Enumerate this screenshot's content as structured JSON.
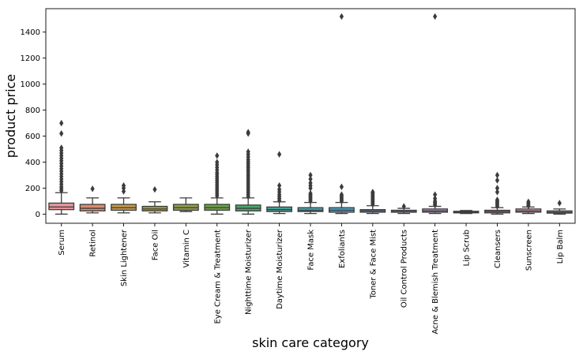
{
  "chart_data": {
    "type": "box",
    "xlabel": "skin care category",
    "ylabel": "product price",
    "ylim": [
      -70,
      1580
    ],
    "yticks": [
      0,
      200,
      400,
      600,
      800,
      1000,
      1200,
      1400
    ],
    "grid": false,
    "legend": "none",
    "categories": [
      "Serum",
      "Retinol",
      "Skin Lightener",
      "Face Oil",
      "Vitamin C",
      "Eye Cream & Treatment",
      "Nighttime Moisturizer",
      "Daytime Moisturizer",
      "Face Mask",
      "Exfoliants",
      "Toner & Face Mist",
      "Oil Control Products",
      "Acne & Blemish Treatment",
      "Lip Scrub",
      "Cleansers",
      "Sunscreen",
      "Lip Balm"
    ],
    "boxes": [
      {
        "category": "Serum",
        "color": "#e8969b",
        "whisker_low": 0,
        "q1": 35,
        "median": 55,
        "q3": 85,
        "whisker_high": 165,
        "outliers": [
          180,
          195,
          210,
          230,
          250,
          270,
          290,
          310,
          330,
          350,
          370,
          390,
          410,
          430,
          450,
          470,
          490,
          510,
          620,
          700
        ]
      },
      {
        "category": "Retinol",
        "color": "#d98b6f",
        "whisker_low": 10,
        "q1": 25,
        "median": 45,
        "q3": 75,
        "whisker_high": 125,
        "outliers": [
          195
        ]
      },
      {
        "category": "Skin Lightener",
        "color": "#c89a46",
        "whisker_low": 10,
        "q1": 30,
        "median": 50,
        "q3": 75,
        "whisker_high": 125,
        "outliers": [
          175,
          200,
          220
        ]
      },
      {
        "category": "Face Oil",
        "color": "#a59a4a",
        "whisker_low": 10,
        "q1": 25,
        "median": 40,
        "q3": 60,
        "whisker_high": 95,
        "outliers": [
          190
        ]
      },
      {
        "category": "Vitamin C",
        "color": "#909e45",
        "whisker_low": 20,
        "q1": 30,
        "median": 50,
        "q3": 75,
        "whisker_high": 125,
        "outliers": []
      },
      {
        "category": "Eye Cream & Treatment",
        "color": "#6aa245",
        "whisker_low": 0,
        "q1": 30,
        "median": 50,
        "q3": 75,
        "whisker_high": 125,
        "outliers": [
          140,
          155,
          170,
          185,
          200,
          215,
          230,
          245,
          260,
          275,
          290,
          305,
          320,
          340,
          360,
          380,
          400,
          450
        ]
      },
      {
        "category": "Nighttime Moisturizer",
        "color": "#4ca66e",
        "whisker_low": 0,
        "q1": 25,
        "median": 45,
        "q3": 70,
        "whisker_high": 125,
        "outliers": [
          135,
          150,
          165,
          180,
          195,
          210,
          225,
          240,
          255,
          270,
          285,
          300,
          315,
          330,
          345,
          360,
          375,
          390,
          405,
          420,
          440,
          460,
          480,
          620,
          630
        ]
      },
      {
        "category": "Daytime Moisturizer",
        "color": "#48a295",
        "whisker_low": 5,
        "q1": 20,
        "median": 35,
        "q3": 55,
        "whisker_high": 95,
        "outliers": [
          105,
          120,
          135,
          150,
          170,
          190,
          220,
          460
        ]
      },
      {
        "category": "Face Mask",
        "color": "#4ba0ac",
        "whisker_low": 5,
        "q1": 20,
        "median": 30,
        "q3": 50,
        "whisker_high": 90,
        "outliers": [
          100,
          110,
          120,
          130,
          140,
          150,
          160,
          200,
          220,
          240,
          270,
          300
        ]
      },
      {
        "category": "Exfoliants",
        "color": "#4e9dbd",
        "whisker_low": 5,
        "q1": 15,
        "median": 30,
        "q3": 50,
        "whisker_high": 90,
        "outliers": [
          100,
          110,
          120,
          130,
          140,
          150,
          210,
          1520
        ]
      },
      {
        "category": "Toner & Face Mist",
        "color": "#7b9bd0",
        "whisker_low": 5,
        "q1": 15,
        "median": 25,
        "q3": 35,
        "whisker_high": 65,
        "outliers": [
          75,
          85,
          95,
          105,
          115,
          125,
          135,
          145,
          155,
          165,
          170
        ]
      },
      {
        "category": "Oil Control Products",
        "color": "#9b92cf",
        "whisker_low": 5,
        "q1": 15,
        "median": 20,
        "q3": 30,
        "whisker_high": 45,
        "outliers": [
          60
        ]
      },
      {
        "category": "Acne & Blemish Treatment",
        "color": "#b58ac8",
        "whisker_low": 5,
        "q1": 15,
        "median": 25,
        "q3": 40,
        "whisker_high": 60,
        "outliers": [
          70,
          80,
          90,
          100,
          120,
          150,
          1520
        ]
      },
      {
        "category": "Lip Scrub",
        "color": "#c88bbf",
        "whisker_low": 5,
        "q1": 10,
        "median": 15,
        "q3": 22,
        "whisker_high": 28,
        "outliers": []
      },
      {
        "category": "Cleansers",
        "color": "#d78ab0",
        "whisker_low": 0,
        "q1": 10,
        "median": 20,
        "q3": 30,
        "whisker_high": 50,
        "outliers": [
          60,
          70,
          80,
          90,
          100,
          110,
          170,
          200,
          260,
          300
        ]
      },
      {
        "category": "Sunscreen",
        "color": "#e08ea6",
        "whisker_low": 5,
        "q1": 15,
        "median": 25,
        "q3": 40,
        "whisker_high": 55,
        "outliers": [
          65,
          75,
          85,
          95
        ]
      },
      {
        "category": "Lip Balm",
        "color": "#ea93a0",
        "whisker_low": 0,
        "q1": 8,
        "median": 15,
        "q3": 25,
        "whisker_high": 40,
        "outliers": [
          85
        ]
      }
    ]
  }
}
